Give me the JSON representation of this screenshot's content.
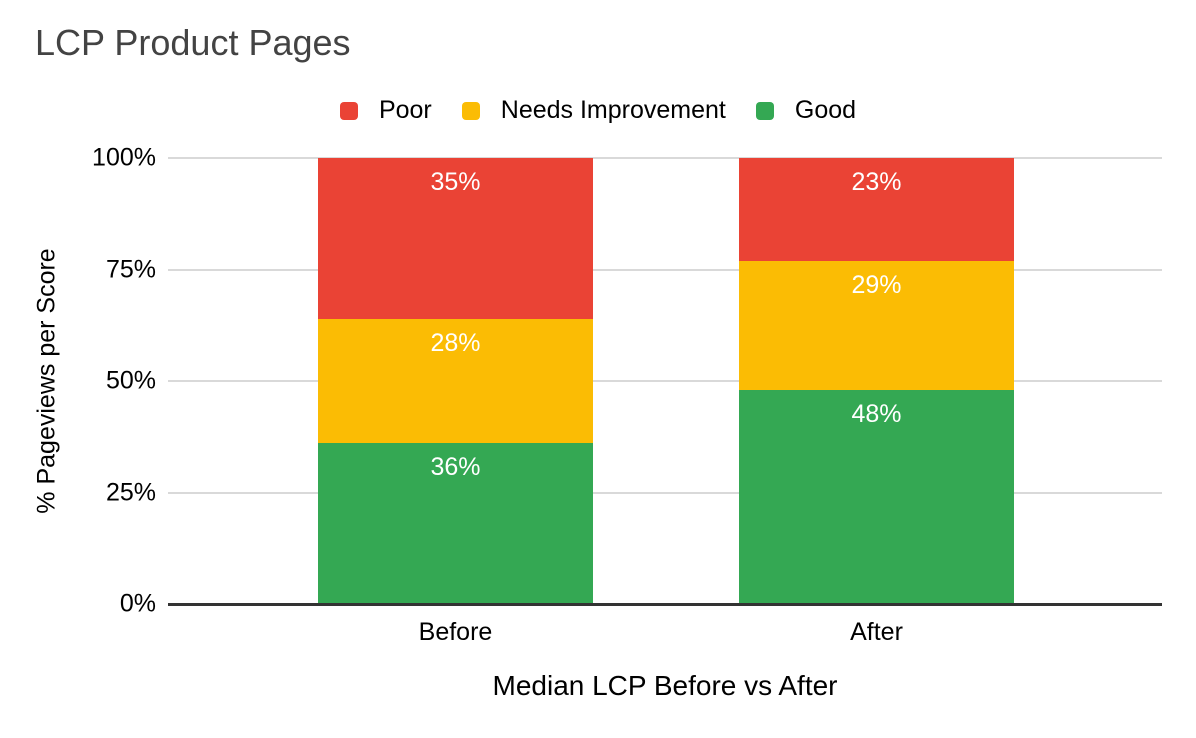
{
  "page": {
    "background": "#FFFFFF"
  },
  "chart_data": {
    "type": "bar",
    "variant": "stacked-100",
    "title": "LCP Product Pages",
    "title_color": "#434343",
    "xlabel": "Median LCP Before vs After",
    "ylabel": "% Pageviews per Score",
    "categories": [
      "Before",
      "After"
    ],
    "series": [
      {
        "name": "Poor",
        "color": "#EA4335",
        "values": [
          35,
          23
        ],
        "labels": [
          "35%",
          "23%"
        ]
      },
      {
        "name": "Needs Improvement",
        "color": "#FBBC04",
        "values": [
          28,
          29
        ],
        "labels": [
          "28%",
          "29%"
        ]
      },
      {
        "name": "Good",
        "color": "#34A853",
        "values": [
          36,
          48
        ],
        "labels": [
          "36%",
          "48%"
        ]
      }
    ],
    "stack_order_top_to_bottom": [
      "Poor",
      "Needs Improvement",
      "Good"
    ],
    "legend": {
      "position": "top",
      "items": [
        "Poor",
        "Needs Improvement",
        "Good"
      ]
    },
    "y_axis": {
      "min": 0,
      "max": 100,
      "ticks": [
        {
          "value": 0,
          "label": "0%"
        },
        {
          "value": 25,
          "label": "25%"
        },
        {
          "value": 50,
          "label": "50%"
        },
        {
          "value": 75,
          "label": "75%"
        },
        {
          "value": 100,
          "label": "100%"
        }
      ]
    },
    "grid": {
      "show": true,
      "color": "#D9D9D9",
      "baseline_color": "#333333"
    },
    "data_label_color": "#FFFFFF",
    "axis_text_color": "#000000"
  }
}
